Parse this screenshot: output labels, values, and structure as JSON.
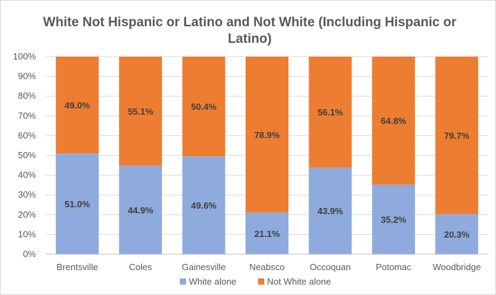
{
  "chart_data": {
    "type": "bar",
    "stacked": true,
    "percent_stacked": true,
    "title": "White Not Hispanic or Latino and Not White (Including Hispanic or Latino)",
    "categories": [
      "Brentsville",
      "Coles",
      "Gainesville",
      "Neabsco",
      "Occoquan",
      "Potomac",
      "Woodbridge"
    ],
    "series": [
      {
        "name": "White alone",
        "values": [
          51.0,
          44.9,
          49.6,
          21.1,
          43.9,
          35.2,
          20.3
        ],
        "labels": [
          "51.0%",
          "44.9%",
          "49.6%",
          "21.1%",
          "43.9%",
          "35.2%",
          "20.3%"
        ],
        "color": "#8faadc"
      },
      {
        "name": "Not White alone",
        "values": [
          49.0,
          55.1,
          50.4,
          78.9,
          56.1,
          64.8,
          79.7
        ],
        "labels": [
          "49.0%",
          "55.1%",
          "50.4%",
          "78.9%",
          "56.1%",
          "64.8%",
          "79.7%"
        ],
        "color": "#ed7d31"
      }
    ],
    "yticks": [
      "0%",
      "10%",
      "20%",
      "30%",
      "40%",
      "50%",
      "60%",
      "70%",
      "80%",
      "90%",
      "100%"
    ],
    "ylim": [
      0,
      100
    ],
    "grid": true,
    "legend_position": "bottom"
  }
}
